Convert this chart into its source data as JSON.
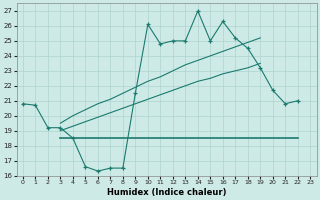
{
  "xlabel": "Humidex (Indice chaleur)",
  "bg_color": "#ceeae7",
  "grid_color": "#aed4d0",
  "line_color": "#1a7a6e",
  "xlim": [
    -0.5,
    23.5
  ],
  "ylim": [
    16,
    27.5
  ],
  "xticks": [
    0,
    1,
    2,
    3,
    4,
    5,
    6,
    7,
    8,
    9,
    10,
    11,
    12,
    13,
    14,
    15,
    16,
    17,
    18,
    19,
    20,
    21,
    22,
    23
  ],
  "yticks": [
    16,
    17,
    18,
    19,
    20,
    21,
    22,
    23,
    24,
    25,
    26,
    27
  ],
  "hours": [
    0,
    1,
    2,
    3,
    4,
    5,
    6,
    7,
    8,
    9,
    10,
    11,
    12,
    13,
    14,
    15,
    16,
    17,
    18,
    19,
    20,
    21,
    22,
    23
  ],
  "line_zigzag": [
    20.8,
    20.7,
    19.2,
    19.2,
    18.5,
    16.6,
    16.3,
    16.5,
    16.5,
    21.5,
    26.1,
    24.8,
    25.0,
    25.0,
    27.0,
    25.0,
    26.3,
    25.2,
    24.5,
    23.2,
    21.7,
    20.8,
    21.0,
    null
  ],
  "line_trend_upper": [
    null,
    null,
    null,
    19.5,
    20.0,
    20.4,
    20.8,
    21.1,
    21.5,
    21.9,
    22.3,
    22.6,
    23.0,
    23.4,
    23.7,
    24.0,
    24.3,
    24.6,
    24.9,
    25.2,
    null,
    null,
    null,
    null
  ],
  "line_trend_lower": [
    null,
    null,
    null,
    19.0,
    19.3,
    19.6,
    19.9,
    20.2,
    20.5,
    20.8,
    21.1,
    21.4,
    21.7,
    22.0,
    22.3,
    22.5,
    22.8,
    23.0,
    23.2,
    23.5,
    null,
    null,
    null,
    null
  ],
  "hline_y": 18.5,
  "hline_x_start": 3,
  "hline_x_end": 22
}
